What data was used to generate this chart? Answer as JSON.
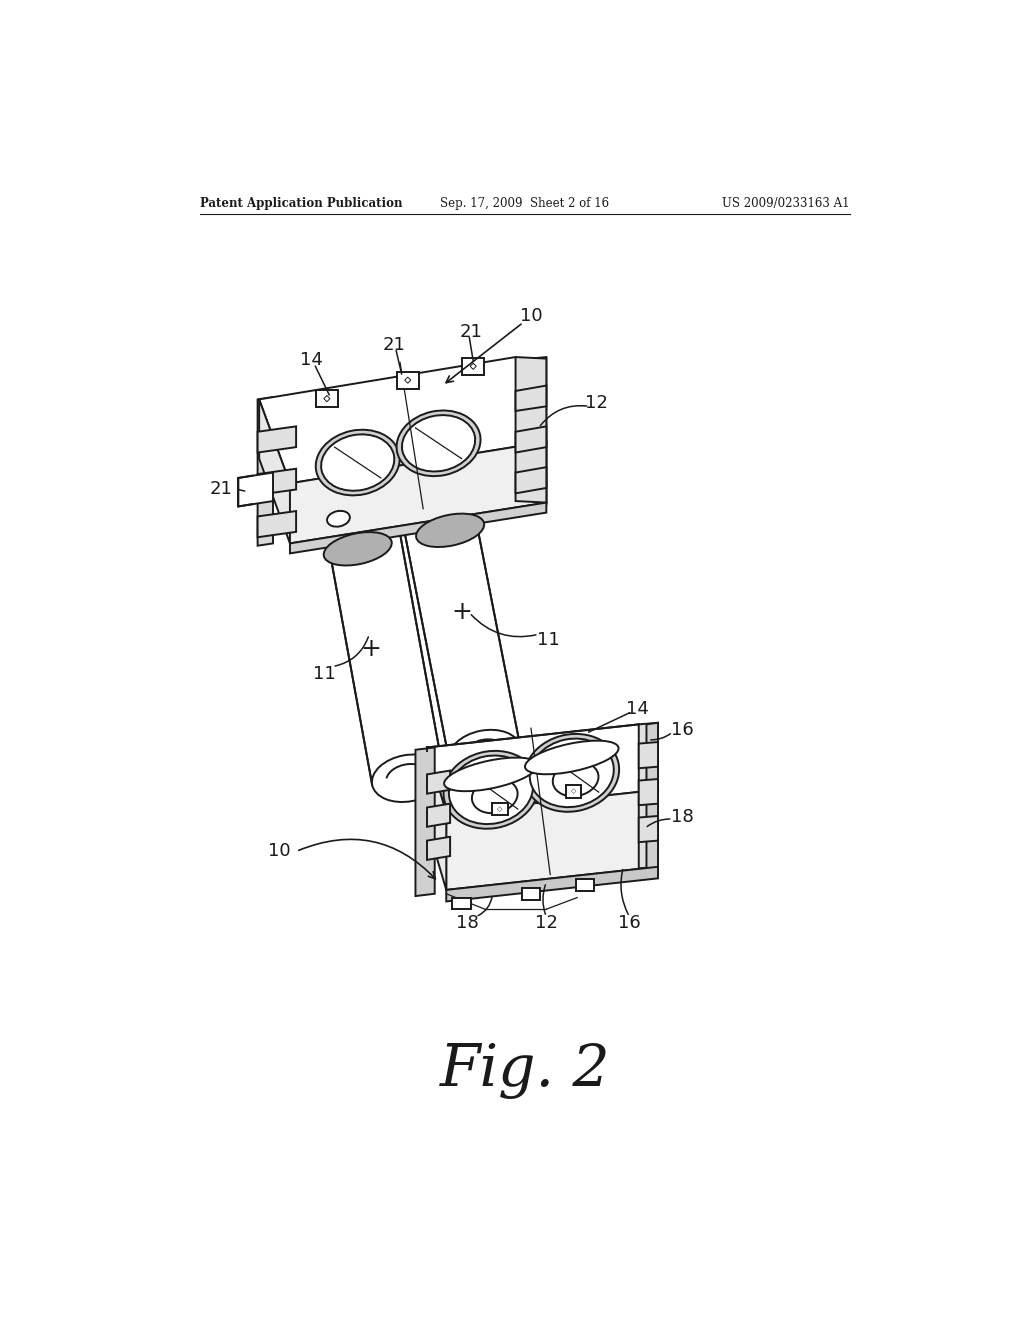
{
  "bg_color": "#ffffff",
  "line_color": "#1a1a1a",
  "header_left": "Patent Application Publication",
  "header_mid": "Sep. 17, 2009  Sheet 2 of 16",
  "header_right": "US 2009/0233163 A1",
  "fig_label": "Fig. 2"
}
